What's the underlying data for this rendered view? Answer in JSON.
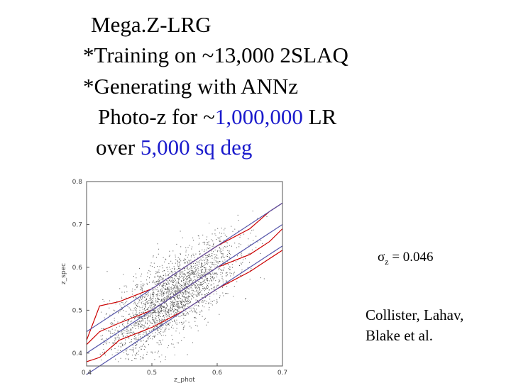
{
  "slide": {
    "title": "Mega.Z-LRG",
    "bullet1": "*Training on ~13,000 2SLAQ",
    "bullet2": "*Generating with ANNz",
    "line3_prefix": "Photo-z for ~",
    "line3_value": "1,000,000",
    "line3_suffix": " LR",
    "line4_prefix": "over ",
    "line4_value": "5,000 sq deg",
    "sigma_symbol": "σ",
    "sigma_sub": "z",
    "sigma_rest": " = 0.046",
    "credit_line1": "Collister, Lahav,",
    "credit_line2": "Blake et al.",
    "accent_color": "#1a1acc"
  },
  "chart_data": {
    "type": "scatter",
    "xlabel": "z_phot",
    "ylabel": "z_spec",
    "xlim": [
      0.4,
      0.7
    ],
    "ylim": [
      0.37,
      0.8
    ],
    "xticks": [
      "0.4",
      "0.5",
      "0.6",
      "0.7"
    ],
    "yticks": [
      "0.4",
      "0.5",
      "0.6",
      "0.7",
      "0.8"
    ],
    "n_points_approx": 13000,
    "series": [
      {
        "role": "upper-envelope",
        "color": "#cc0000",
        "x": [
          0.4,
          0.42,
          0.45,
          0.5,
          0.55,
          0.6,
          0.65,
          0.68,
          0.7
        ],
        "y": [
          0.43,
          0.51,
          0.52,
          0.55,
          0.6,
          0.65,
          0.69,
          0.73,
          0.75
        ]
      },
      {
        "role": "median",
        "color": "#cc0000",
        "x": [
          0.4,
          0.42,
          0.45,
          0.5,
          0.55,
          0.6,
          0.65,
          0.68,
          0.7
        ],
        "y": [
          0.42,
          0.45,
          0.47,
          0.5,
          0.55,
          0.6,
          0.63,
          0.66,
          0.69
        ]
      },
      {
        "role": "lower-envelope",
        "color": "#cc0000",
        "x": [
          0.4,
          0.42,
          0.45,
          0.5,
          0.55,
          0.6,
          0.65,
          0.68,
          0.7
        ],
        "y": [
          0.38,
          0.39,
          0.43,
          0.46,
          0.5,
          0.55,
          0.59,
          0.62,
          0.64
        ]
      },
      {
        "role": "one-to-one",
        "color": "#5555aa",
        "x": [
          0.4,
          0.7
        ],
        "y": [
          0.4,
          0.7
        ]
      },
      {
        "role": "offset-plus",
        "color": "#5555aa",
        "x": [
          0.4,
          0.7
        ],
        "y": [
          0.45,
          0.75
        ]
      },
      {
        "role": "offset-minus",
        "color": "#5555aa",
        "x": [
          0.4,
          0.7
        ],
        "y": [
          0.35,
          0.65
        ]
      }
    ]
  }
}
